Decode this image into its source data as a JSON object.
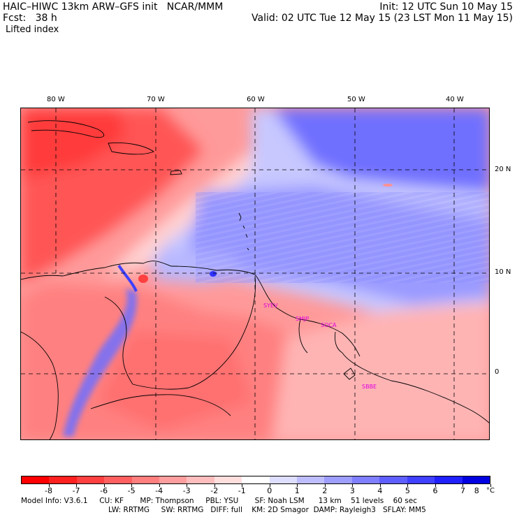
{
  "header": {
    "title": "HAIC–HIWC 13km ARW–GFS init   NCAR/MMM",
    "init": "Init: 12 UTC Sun 10 May 15",
    "fcst": "Fcst:   38 h",
    "valid": "Valid: 02 UTC Tue 12 May 15 (23 LST Mon 11 May 15)",
    "field": "Lifted index"
  },
  "map": {
    "lon_labels": [
      "80 W",
      "70 W",
      "60 W",
      "50 W",
      "40 W"
    ],
    "lat_labels": [
      "20 N",
      "10 N",
      "0"
    ],
    "stations": [
      "SYEV",
      "SMJP",
      "SOCA",
      "SBBE"
    ]
  },
  "colorbar": {
    "ticks": [
      "-8",
      "-7",
      "-6",
      "-5",
      "-4",
      "-3",
      "-2",
      "-1",
      "0",
      "1",
      "2",
      "3",
      "4",
      "5",
      "6",
      "7",
      "8"
    ],
    "unit": "°C",
    "colors": [
      "#ff0000",
      "#ff2020",
      "#ff4040",
      "#ff5f5f",
      "#ff7f7f",
      "#ff9e9e",
      "#ffbebe",
      "#ffdede",
      "#ffffff",
      "#dedeff",
      "#bebeff",
      "#9e9eff",
      "#7f7fff",
      "#5f5fff",
      "#4040ff",
      "#2020ff",
      "#0000e0"
    ]
  },
  "footer": {
    "line1": "Model Info: V3.6.1     CU: KF       MP: Thompson     PBL: YSU       SF: Noah LSM      13 km    51 levels    60 sec",
    "line2": "LW: RRTMG     SW: RRTMG   DIFF: full    KM: 2D Smagor  DAMP: Rayleigh3   SFLAY: MM5"
  }
}
